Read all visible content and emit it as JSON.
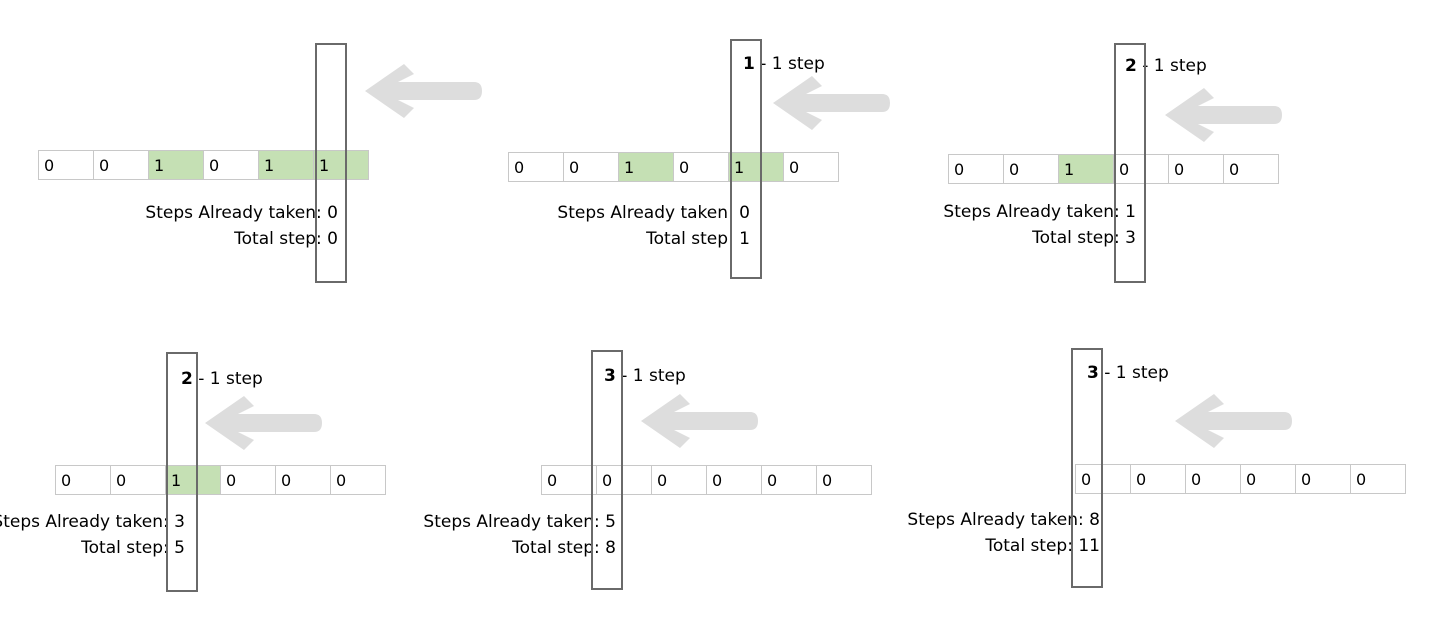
{
  "panels": [
    {
      "cells": [
        "0",
        "0",
        "1",
        "0",
        "1",
        "1"
      ],
      "highlighted": [
        false,
        false,
        true,
        false,
        true,
        true
      ],
      "step_number": "",
      "step_suffix": "",
      "already_label": "Steps Already taken: ",
      "already_value": "0",
      "total_label": "Total step: ",
      "total_value": "0"
    },
    {
      "cells": [
        "0",
        "0",
        "1",
        "0",
        "1",
        "0"
      ],
      "highlighted": [
        false,
        false,
        true,
        false,
        true,
        false
      ],
      "step_number": "1",
      "step_suffix": " - 1 step",
      "already_label": "Steps Already taken: ",
      "already_value": "0",
      "total_label": "Total step: ",
      "total_value": "1"
    },
    {
      "cells": [
        "0",
        "0",
        "1",
        "0",
        "0",
        "0"
      ],
      "highlighted": [
        false,
        false,
        true,
        false,
        false,
        false
      ],
      "step_number": "2",
      "step_suffix": " - 1 step",
      "already_label": "Steps Already taken: ",
      "already_value": "1",
      "total_label": "Total step: ",
      "total_value": "3"
    },
    {
      "cells": [
        "0",
        "0",
        "1",
        "0",
        "0",
        "0"
      ],
      "highlighted": [
        false,
        false,
        true,
        false,
        false,
        false
      ],
      "step_number": "2",
      "step_suffix": " - 1 step",
      "already_label": "Steps Already taken: ",
      "already_value": "3",
      "total_label": "Total step: ",
      "total_value": "5"
    },
    {
      "cells": [
        "0",
        "0",
        "0",
        "0",
        "0",
        "0"
      ],
      "highlighted": [
        false,
        false,
        false,
        false,
        false,
        false
      ],
      "step_number": "3",
      "step_suffix": " - 1 step",
      "already_label": "Steps Already taken: ",
      "already_value": "5",
      "total_label": "Total step: ",
      "total_value": "8"
    },
    {
      "cells": [
        "0",
        "0",
        "0",
        "0",
        "0",
        "0"
      ],
      "highlighted": [
        false,
        false,
        false,
        false,
        false,
        false
      ],
      "step_number": "3",
      "step_suffix": " - 1 step",
      "already_label": "Steps Already taken: ",
      "already_value": "8",
      "total_label": "Total step: ",
      "total_value": "11"
    }
  ],
  "colors": {
    "highlight": "#c5e0b4",
    "cell_border": "#c8c8c8",
    "window_border": "#6a6a6a",
    "arrow": "#dddddd"
  },
  "icons": {
    "arrow": "left-arrow-icon"
  }
}
